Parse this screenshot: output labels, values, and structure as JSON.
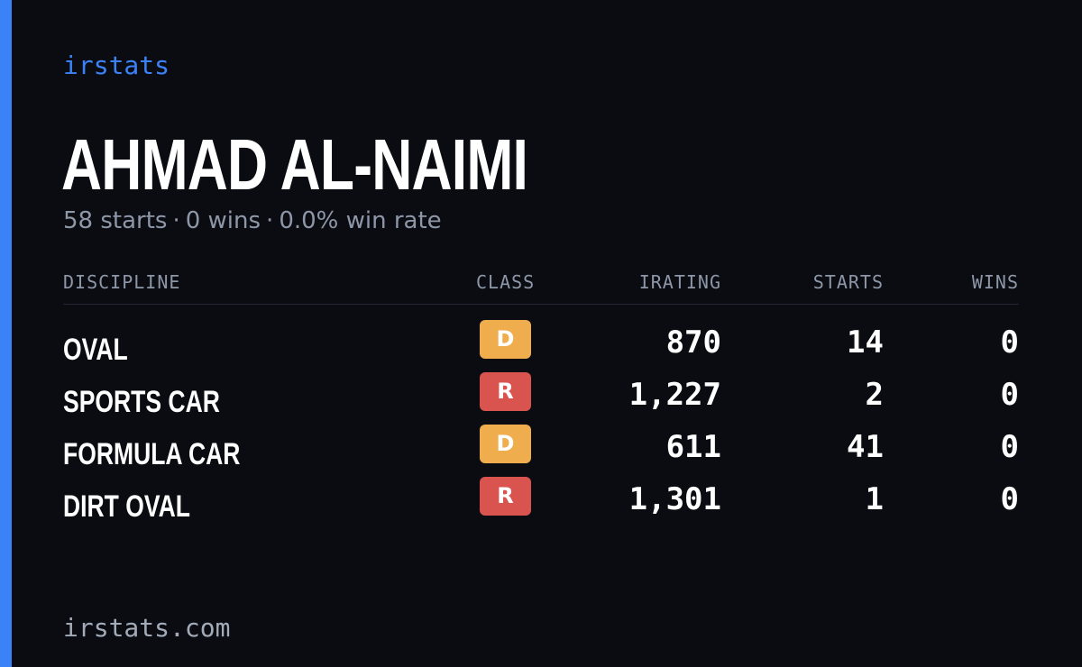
{
  "brand": "irstats",
  "driver": {
    "name": "AHMAD AL-NAIMI",
    "starts_text": "58 starts",
    "wins_text": "0 wins",
    "win_rate_text": "0.0% win rate",
    "separator": "·"
  },
  "table": {
    "headers": {
      "discipline": "DISCIPLINE",
      "class": "CLASS",
      "irating": "IRATING",
      "starts": "STARTS",
      "wins": "WINS"
    },
    "rows": [
      {
        "discipline": "OVAL",
        "class": "D",
        "irating": "870",
        "starts": "14",
        "wins": "0"
      },
      {
        "discipline": "SPORTS CAR",
        "class": "R",
        "irating": "1,227",
        "starts": "2",
        "wins": "0"
      },
      {
        "discipline": "FORMULA CAR",
        "class": "D",
        "irating": "611",
        "starts": "41",
        "wins": "0"
      },
      {
        "discipline": "DIRT OVAL",
        "class": "R",
        "irating": "1,301",
        "starts": "1",
        "wins": "0"
      }
    ]
  },
  "footer": "irstats.com",
  "colors": {
    "accent": "#3b82f6",
    "background": "#0a0c12",
    "class_d": "#f0ad4e",
    "class_r": "#d9534f",
    "muted_text": "#8e97a8"
  }
}
